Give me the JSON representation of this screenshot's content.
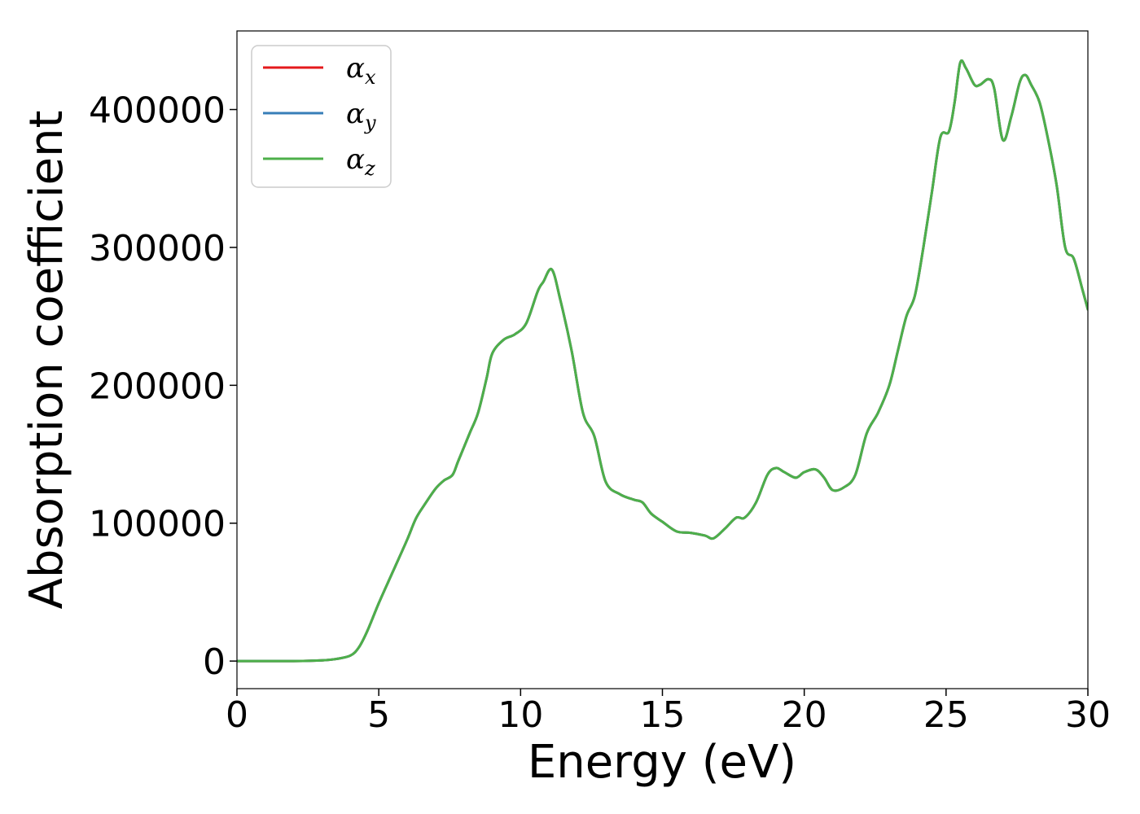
{
  "chart_data": {
    "type": "line",
    "xlabel": "Energy (eV)",
    "ylabel": "Absorption coefficient",
    "xlim": [
      0,
      30
    ],
    "ylim": [
      -20000,
      457000
    ],
    "xticks": [
      0,
      5,
      10,
      15,
      20,
      25,
      30
    ],
    "yticks": [
      0,
      100000,
      200000,
      300000,
      400000
    ],
    "grid": false,
    "legend_position": "upper-left",
    "x": [
      0,
      1,
      2,
      3,
      3.5,
      4,
      4.3,
      4.6,
      5,
      5.5,
      6,
      6.3,
      6.6,
      7,
      7.3,
      7.6,
      7.8,
      8.2,
      8.5,
      8.8,
      9,
      9.4,
      9.8,
      10.2,
      10.6,
      10.8,
      11.1,
      11.4,
      11.8,
      12.2,
      12.6,
      13,
      13.5,
      14,
      14.3,
      14.6,
      15,
      15.5,
      16,
      16.5,
      16.8,
      17.2,
      17.6,
      17.9,
      18.3,
      18.7,
      19,
      19.3,
      19.7,
      20,
      20.4,
      20.7,
      21,
      21.4,
      21.8,
      22.2,
      22.6,
      23,
      23.3,
      23.6,
      23.9,
      24.2,
      24.5,
      24.8,
      25.1,
      25.3,
      25.5,
      25.7,
      26,
      26.2,
      26.5,
      26.7,
      27,
      27.3,
      27.6,
      27.8,
      28,
      28.3,
      28.6,
      28.9,
      29.2,
      29.5,
      29.8,
      30
    ],
    "series": [
      {
        "name": "α",
        "sub": "x",
        "color": "#e41a1c",
        "values": [
          0,
          0,
          0,
          500,
          1500,
          4000,
          10000,
          22000,
          42000,
          65000,
          88000,
          103000,
          113000,
          125000,
          131000,
          135000,
          145000,
          165000,
          180000,
          205000,
          223000,
          233000,
          237000,
          245000,
          268000,
          275000,
          284000,
          262000,
          225000,
          180000,
          163000,
          130000,
          121000,
          117000,
          115000,
          107000,
          101000,
          94000,
          93000,
          91000,
          89000,
          96000,
          104000,
          104000,
          115000,
          135000,
          140000,
          137000,
          133000,
          137000,
          139000,
          133000,
          124000,
          126000,
          135000,
          165000,
          180000,
          200000,
          225000,
          250000,
          265000,
          300000,
          340000,
          380000,
          384000,
          405000,
          434000,
          430000,
          418000,
          418000,
          422000,
          415000,
          378000,
          395000,
          420000,
          425000,
          418000,
          405000,
          378000,
          345000,
          300000,
          292000,
          270000,
          255000
        ]
      },
      {
        "name": "α",
        "sub": "y",
        "color": "#377eb8",
        "values": [
          0,
          0,
          0,
          500,
          1500,
          4000,
          10000,
          22000,
          42000,
          65000,
          88000,
          103000,
          113000,
          125000,
          131000,
          135000,
          145000,
          165000,
          180000,
          205000,
          223000,
          233000,
          237000,
          245000,
          268000,
          275000,
          284000,
          262000,
          225000,
          180000,
          163000,
          130000,
          121000,
          117000,
          115000,
          107000,
          101000,
          94000,
          93000,
          91000,
          89000,
          96000,
          104000,
          104000,
          115000,
          135000,
          140000,
          137000,
          133000,
          137000,
          139000,
          133000,
          124000,
          126000,
          135000,
          165000,
          180000,
          200000,
          225000,
          250000,
          265000,
          300000,
          340000,
          380000,
          384000,
          405000,
          434000,
          430000,
          418000,
          418000,
          422000,
          415000,
          378000,
          395000,
          420000,
          425000,
          418000,
          405000,
          378000,
          345000,
          300000,
          292000,
          270000,
          255000
        ]
      },
      {
        "name": "α",
        "sub": "z",
        "color": "#4daf4a",
        "values": [
          0,
          0,
          0,
          500,
          1500,
          4000,
          10000,
          22000,
          42000,
          65000,
          88000,
          103000,
          113000,
          125000,
          131000,
          135000,
          145000,
          165000,
          180000,
          205000,
          223000,
          233000,
          237000,
          245000,
          268000,
          275000,
          284000,
          262000,
          225000,
          180000,
          163000,
          130000,
          121000,
          117000,
          115000,
          107000,
          101000,
          94000,
          93000,
          91000,
          89000,
          96000,
          104000,
          104000,
          115000,
          135000,
          140000,
          137000,
          133000,
          137000,
          139000,
          133000,
          124000,
          126000,
          135000,
          165000,
          180000,
          200000,
          225000,
          250000,
          265000,
          300000,
          340000,
          380000,
          384000,
          405000,
          434000,
          430000,
          418000,
          418000,
          422000,
          415000,
          378000,
          395000,
          420000,
          425000,
          418000,
          405000,
          378000,
          345000,
          300000,
          292000,
          270000,
          255000
        ]
      }
    ]
  }
}
